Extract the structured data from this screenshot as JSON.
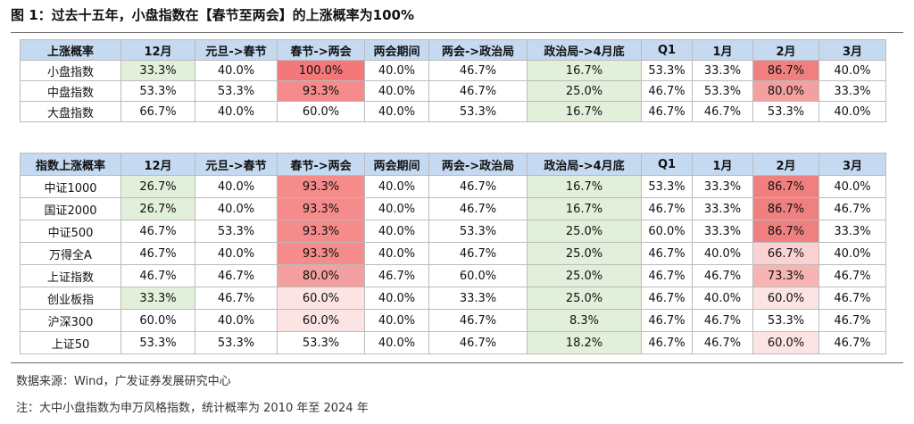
{
  "title": "图 1：过去十五年，小盘指数在【春节至两会】的上涨概率为100%",
  "tables": [
    {
      "header": [
        "上涨概率",
        "12月",
        "元旦->春节",
        "春节->两会",
        "两会期间",
        "两会->政治局",
        "政治局->4月底",
        "Q1",
        "1月",
        "2月",
        "3月"
      ],
      "rows": [
        [
          "小盘指数",
          "33.3%",
          "40.0%",
          "100.0%",
          "40.0%",
          "46.7%",
          "16.7%",
          "53.3%",
          "33.3%",
          "86.7%",
          "40.0%"
        ],
        [
          "中盘指数",
          "53.3%",
          "53.3%",
          "93.3%",
          "40.0%",
          "46.7%",
          "25.0%",
          "46.7%",
          "53.3%",
          "80.0%",
          "33.3%"
        ],
        [
          "大盘指数",
          "66.7%",
          "40.0%",
          "60.0%",
          "40.0%",
          "53.3%",
          "16.7%",
          "46.7%",
          "46.7%",
          "53.3%",
          "40.0%"
        ]
      ],
      "fills": [
        [
          null,
          "#e2efda",
          null,
          "#f4777a",
          null,
          null,
          "#e2efda",
          null,
          null,
          "#f08080",
          null
        ],
        [
          null,
          null,
          null,
          "#f58b8b",
          null,
          null,
          "#e2efda",
          null,
          null,
          "#f4a0a0",
          null
        ],
        [
          null,
          null,
          null,
          null,
          null,
          null,
          "#e2efda",
          null,
          null,
          null,
          null
        ]
      ]
    },
    {
      "header": [
        "指数上涨概率",
        "12月",
        "元旦->春节",
        "春节->两会",
        "两会期间",
        "两会->政治局",
        "政治局->4月底",
        "Q1",
        "1月",
        "2月",
        "3月"
      ],
      "rows": [
        [
          "中证1000",
          "26.7%",
          "40.0%",
          "93.3%",
          "40.0%",
          "46.7%",
          "16.7%",
          "53.3%",
          "33.3%",
          "86.7%",
          "40.0%"
        ],
        [
          "国证2000",
          "26.7%",
          "40.0%",
          "93.3%",
          "40.0%",
          "46.7%",
          "16.7%",
          "46.7%",
          "33.3%",
          "86.7%",
          "46.7%"
        ],
        [
          "中证500",
          "46.7%",
          "53.3%",
          "93.3%",
          "40.0%",
          "53.3%",
          "25.0%",
          "60.0%",
          "33.3%",
          "86.7%",
          "33.3%"
        ],
        [
          "万得全A",
          "46.7%",
          "40.0%",
          "93.3%",
          "40.0%",
          "46.7%",
          "25.0%",
          "46.7%",
          "40.0%",
          "66.7%",
          "40.0%"
        ],
        [
          "上证指数",
          "46.7%",
          "46.7%",
          "80.0%",
          "46.7%",
          "60.0%",
          "25.0%",
          "46.7%",
          "46.7%",
          "73.3%",
          "46.7%"
        ],
        [
          "创业板指",
          "33.3%",
          "46.7%",
          "60.0%",
          "40.0%",
          "33.3%",
          "25.0%",
          "46.7%",
          "40.0%",
          "60.0%",
          "46.7%"
        ],
        [
          "沪深300",
          "60.0%",
          "40.0%",
          "60.0%",
          "40.0%",
          "46.7%",
          "8.3%",
          "46.7%",
          "46.7%",
          "53.3%",
          "46.7%"
        ],
        [
          "上证50",
          "53.3%",
          "53.3%",
          "53.3%",
          "40.0%",
          "46.7%",
          "18.2%",
          "46.7%",
          "46.7%",
          "60.0%",
          "46.7%"
        ]
      ],
      "fills": [
        [
          null,
          "#e2efda",
          null,
          "#f58b8b",
          null,
          null,
          "#e2efda",
          null,
          null,
          "#f08080",
          null
        ],
        [
          null,
          "#e2efda",
          null,
          "#f58b8b",
          null,
          null,
          "#e2efda",
          null,
          null,
          "#f08080",
          null
        ],
        [
          null,
          null,
          null,
          "#f58b8b",
          null,
          null,
          "#e2efda",
          null,
          null,
          "#f08080",
          null
        ],
        [
          null,
          null,
          null,
          "#f58b8b",
          null,
          null,
          "#e2efda",
          null,
          null,
          "#fad2d2",
          null
        ],
        [
          null,
          null,
          null,
          "#f4a0a0",
          null,
          null,
          "#e2efda",
          null,
          null,
          "#f6b4b4",
          null
        ],
        [
          null,
          "#e2efda",
          null,
          "#fce4e4",
          null,
          null,
          "#e2efda",
          null,
          null,
          "#fce4e4",
          null
        ],
        [
          null,
          null,
          null,
          "#fce4e4",
          null,
          null,
          "#e2efda",
          null,
          null,
          null,
          null
        ],
        [
          null,
          null,
          null,
          null,
          null,
          null,
          "#e2efda",
          null,
          null,
          "#fce4e4",
          null
        ]
      ]
    }
  ],
  "source": "数据来源：Wind，广发证券发展研究中心",
  "note": "注：大中小盘指数为申万风格指数，统计概率为 2010 年至 2024 年"
}
